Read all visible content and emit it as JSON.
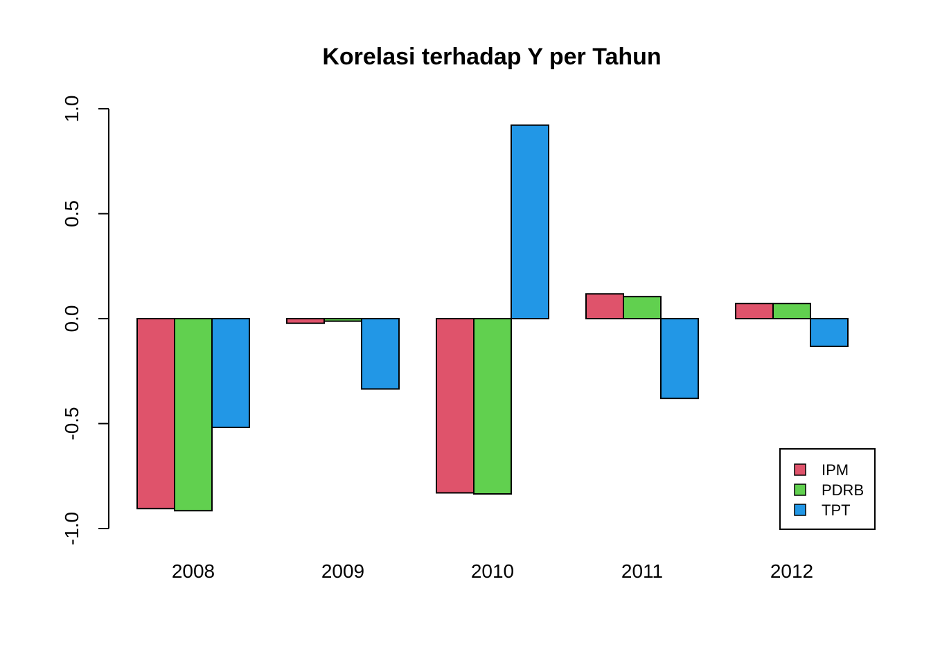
{
  "chart_data": {
    "type": "bar",
    "title": "Korelasi terhadap Y per Tahun",
    "xlabel": "",
    "ylabel": "",
    "categories": [
      "2008",
      "2009",
      "2010",
      "2011",
      "2012"
    ],
    "series": [
      {
        "name": "IPM",
        "color": "#DF536B",
        "values": [
          -0.905,
          -0.022,
          -0.83,
          0.118,
          0.072
        ]
      },
      {
        "name": "PDRB",
        "color": "#61D04F",
        "values": [
          -0.915,
          -0.012,
          -0.835,
          0.105,
          0.072
        ]
      },
      {
        "name": "TPT",
        "color": "#2297E6",
        "values": [
          -0.518,
          -0.335,
          0.922,
          -0.38,
          -0.132
        ]
      }
    ],
    "ylim": [
      -1.0,
      1.0
    ],
    "yticks": [
      "-1.0",
      "-0.5",
      "0.0",
      "0.5",
      "1.0"
    ],
    "ytick_values": [
      -1.0,
      -0.5,
      0.0,
      0.5,
      1.0
    ],
    "grid": false,
    "legend": "bottom-right"
  }
}
